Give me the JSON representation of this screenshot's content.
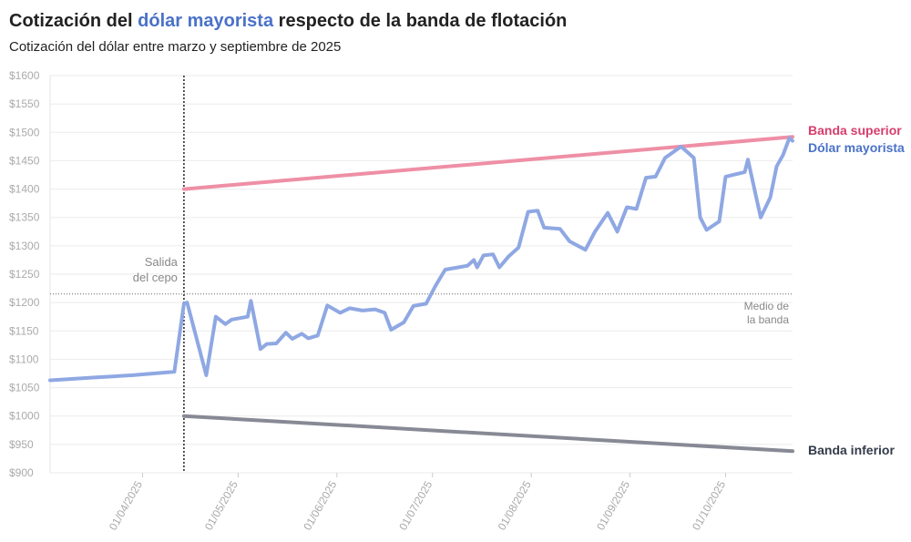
{
  "chart_data": {
    "type": "line",
    "title": [
      "Cotización del",
      "dólar mayorista",
      "respecto de la banda de flotación"
    ],
    "title_colors": [
      "#222222",
      "#4a72c8",
      "#222222"
    ],
    "subtitle": "Cotización del dólar entre marzo y septiembre de 2025",
    "xlim": [
      "03/03/2025",
      "22/10/2025"
    ],
    "xticks": [
      "01/04/2025",
      "01/05/2025",
      "01/06/2025",
      "01/07/2025",
      "01/08/2025",
      "01/09/2025",
      "01/10/2025"
    ],
    "ylim": [
      900,
      1600
    ],
    "yticks": [
      {
        "value": 900,
        "label": "$900"
      },
      {
        "value": 950,
        "label": "$950"
      },
      {
        "value": 1000,
        "label": "$1000"
      },
      {
        "value": 1050,
        "label": "$1050"
      },
      {
        "value": 1100,
        "label": "$1100"
      },
      {
        "value": 1150,
        "label": "$1150"
      },
      {
        "value": 1200,
        "label": "$1200"
      },
      {
        "value": 1250,
        "label": "$1250"
      },
      {
        "value": 1300,
        "label": "$1300"
      },
      {
        "value": 1350,
        "label": "$1350"
      },
      {
        "value": 1400,
        "label": "$1400"
      },
      {
        "value": 1450,
        "label": "$1450"
      },
      {
        "value": 1500,
        "label": "$1500"
      },
      {
        "value": 1550,
        "label": "$1550"
      },
      {
        "value": 1600,
        "label": "$1600"
      }
    ],
    "grid": true,
    "series": [
      {
        "name": "Banda superior",
        "color": "#ee8fa5",
        "label_color": "#d63e6b",
        "x": [
          "14/04/2025",
          "22/10/2025"
        ],
        "values": [
          1400,
          1492
        ]
      },
      {
        "name": "Dólar mayorista",
        "color": "#8fa8e3",
        "label_color": "#4a72c8",
        "x": [
          "03/03/2025",
          "17/03/2025",
          "29/03/2025",
          "11/04/2025",
          "14/04/2025",
          "15/04/2025",
          "21/04/2025",
          "24/04/2025",
          "27/04/2025",
          "29/04/2025",
          "04/05/2025",
          "05/05/2025",
          "08/05/2025",
          "10/05/2025",
          "13/05/2025",
          "16/05/2025",
          "18/05/2025",
          "21/05/2025",
          "23/05/2025",
          "26/05/2025",
          "29/05/2025",
          "02/06/2025",
          "05/06/2025",
          "09/06/2025",
          "13/06/2025",
          "16/06/2025",
          "18/06/2025",
          "22/06/2025",
          "25/06/2025",
          "29/06/2025",
          "02/07/2025",
          "05/07/2025",
          "12/07/2025",
          "14/07/2025",
          "15/07/2025",
          "17/07/2025",
          "20/07/2025",
          "22/07/2025",
          "25/07/2025",
          "28/07/2025",
          "31/07/2025",
          "03/08/2025",
          "05/08/2025",
          "10/08/2025",
          "13/08/2025",
          "18/08/2025",
          "21/08/2025",
          "25/08/2025",
          "28/08/2025",
          "31/08/2025",
          "03/09/2025",
          "06/09/2025",
          "09/09/2025",
          "12/09/2025",
          "17/09/2025",
          "21/09/2025",
          "23/09/2025",
          "25/09/2025",
          "29/09/2025",
          "01/10/2025",
          "07/10/2025",
          "08/10/2025",
          "12/10/2025",
          "15/10/2025",
          "17/10/2025",
          "19/10/2025",
          "21/10/2025",
          "22/10/2025"
        ],
        "values": [
          1063,
          1068,
          1072,
          1078,
          1198,
          1200,
          1072,
          1175,
          1162,
          1170,
          1175,
          1203,
          1118,
          1127,
          1128,
          1147,
          1136,
          1145,
          1137,
          1142,
          1195,
          1182,
          1190,
          1186,
          1188,
          1182,
          1152,
          1165,
          1194,
          1198,
          1230,
          1258,
          1265,
          1275,
          1262,
          1283,
          1285,
          1262,
          1282,
          1297,
          1360,
          1362,
          1332,
          1330,
          1308,
          1293,
          1325,
          1358,
          1325,
          1368,
          1365,
          1420,
          1422,
          1455,
          1475,
          1455,
          1350,
          1328,
          1343,
          1422,
          1430,
          1452,
          1350,
          1385,
          1440,
          1460,
          1490,
          1485
        ]
      },
      {
        "name": "Banda inferior",
        "color": "#878a95",
        "label_color": "#333a4a",
        "x": [
          "14/04/2025",
          "22/10/2025"
        ],
        "values": [
          1000,
          938
        ]
      }
    ],
    "annotations": [
      {
        "text": [
          "Salida",
          "del cepo"
        ],
        "x": "14/04/2025"
      },
      {
        "text": [
          "Medio de",
          "la banda"
        ],
        "y": 1215
      }
    ]
  }
}
